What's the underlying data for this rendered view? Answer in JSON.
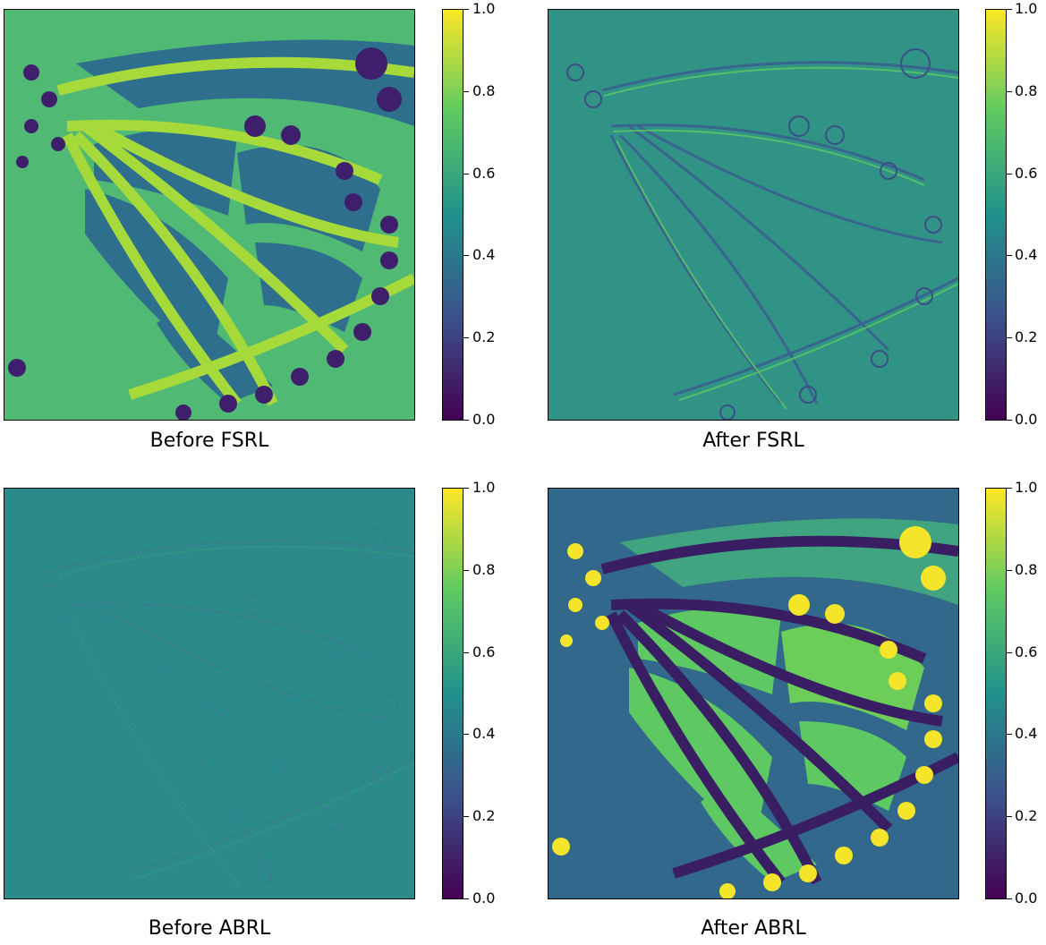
{
  "figure": {
    "panels": [
      {
        "caption": "Before FSRL",
        "style": "before-fsrl",
        "colorbar_ticks": [
          "0.0",
          "0.2",
          "0.4",
          "0.6",
          "0.8",
          "1.0"
        ]
      },
      {
        "caption": "After FSRL",
        "style": "after-fsrl",
        "colorbar_ticks": [
          "0.0",
          "0.2",
          "0.4",
          "0.6",
          "0.8",
          "1.0"
        ]
      },
      {
        "caption": "Before ABRL",
        "style": "before-abrl",
        "colorbar_ticks": [
          "0.0",
          "0.2",
          "0.4",
          "0.6",
          "0.8",
          "1.0"
        ]
      },
      {
        "caption": "After ABRL",
        "style": "after-abrl",
        "colorbar_ticks": [
          "0.0",
          "0.2",
          "0.4",
          "0.6",
          "0.8",
          "1.0"
        ]
      }
    ],
    "colormap": "viridis",
    "colors": {
      "viridis_0": "#440154",
      "viridis_25": "#3b528b",
      "viridis_50": "#21918c",
      "viridis_75": "#5ec962",
      "viridis_100": "#fde725"
    }
  }
}
